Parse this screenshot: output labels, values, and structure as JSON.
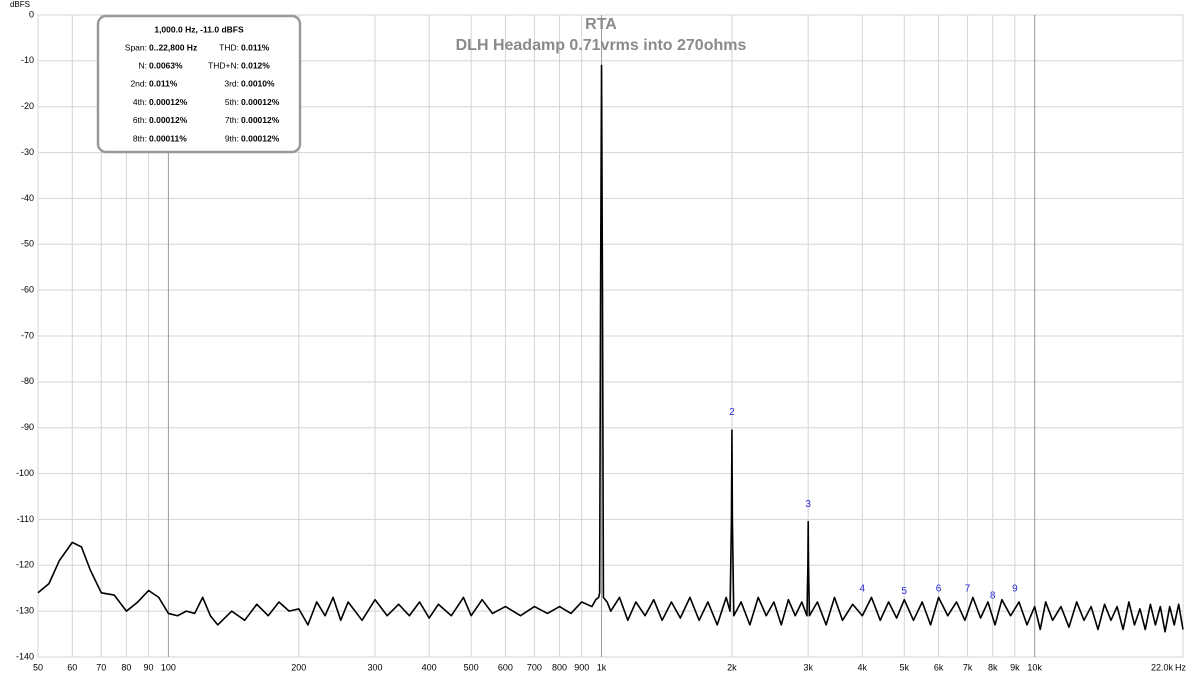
{
  "chart_data": {
    "type": "line",
    "title": "RTA",
    "subtitle": "DLH Headamp 0.71vrms into 270ohms",
    "y_unit": "dBFS",
    "x_unit": "Hz",
    "log_x": true,
    "grid": true,
    "xlim": [
      50,
      22000
    ],
    "ylim": [
      -140,
      0
    ],
    "yticks": [
      0,
      -10,
      -20,
      -30,
      -40,
      -50,
      -60,
      -70,
      -80,
      -90,
      -100,
      -110,
      -120,
      -130,
      -140
    ],
    "xticks": [
      50,
      60,
      70,
      80,
      90,
      100,
      200,
      300,
      400,
      500,
      600,
      700,
      800,
      900,
      {
        "value": 1000,
        "label": "1k"
      },
      {
        "value": 2000,
        "label": "2k"
      },
      {
        "value": 3000,
        "label": "3k"
      },
      {
        "value": 4000,
        "label": "4k"
      },
      {
        "value": 5000,
        "label": "5k"
      },
      {
        "value": 6000,
        "label": "6k"
      },
      {
        "value": 7000,
        "label": "7k"
      },
      {
        "value": 8000,
        "label": "8k"
      },
      {
        "value": 9000,
        "label": "9k"
      },
      {
        "value": 10000,
        "label": "10k"
      },
      {
        "value": 22000,
        "label": "22.0k"
      }
    ],
    "x": [
      50,
      53,
      56,
      60,
      63,
      66,
      70,
      75,
      80,
      85,
      90,
      95,
      100,
      105,
      110,
      115,
      120,
      125,
      130,
      140,
      150,
      160,
      170,
      180,
      190,
      200,
      210,
      220,
      230,
      240,
      250,
      260,
      280,
      300,
      320,
      340,
      360,
      380,
      400,
      420,
      450,
      480,
      500,
      530,
      560,
      600,
      650,
      700,
      750,
      800,
      850,
      900,
      950,
      970,
      985,
      990,
      995,
      1000,
      1005,
      1010,
      1030,
      1050,
      1100,
      1150,
      1200,
      1260,
      1320,
      1380,
      1450,
      1520,
      1600,
      1680,
      1760,
      1850,
      1940,
      1980,
      1995,
      2000,
      2005,
      2020,
      2100,
      2200,
      2300,
      2400,
      2500,
      2600,
      2700,
      2800,
      2900,
      2980,
      2995,
      3000,
      3005,
      3020,
      3150,
      3300,
      3450,
      3600,
      3800,
      4000,
      4200,
      4400,
      4600,
      4800,
      5000,
      5250,
      5500,
      5750,
      6000,
      6300,
      6600,
      6900,
      7200,
      7500,
      7800,
      8100,
      8400,
      8800,
      9200,
      9600,
      10000,
      10300,
      10600,
      11000,
      11500,
      12000,
      12500,
      13000,
      13500,
      14000,
      14500,
      15000,
      15500,
      16000,
      16500,
      17000,
      17500,
      18000,
      18500,
      19000,
      19500,
      20000,
      20500,
      21000,
      21500,
      22000
    ],
    "series": [
      {
        "name": "RTA",
        "color": "#000000",
        "values": [
          -126,
          -124,
          -119,
          -115,
          -116,
          -121,
          -126,
          -126.5,
          -130,
          -128,
          -125.5,
          -127,
          -130.5,
          -131,
          -130,
          -130.5,
          -127,
          -131,
          -133,
          -130,
          -132,
          -128.5,
          -131,
          -128,
          -130,
          -129.5,
          -133,
          -128,
          -131,
          -127,
          -132,
          -128,
          -132,
          -127.5,
          -131,
          -128.5,
          -131,
          -128,
          -131.5,
          -128.5,
          -131,
          -127,
          -131,
          -127.5,
          -130.5,
          -129,
          -131,
          -129,
          -130.5,
          -129,
          -130.5,
          -128,
          -129,
          -127.5,
          -127,
          -126,
          -60,
          -11,
          -60,
          -127,
          -128,
          -130,
          -127,
          -132,
          -128,
          -131,
          -127.5,
          -132,
          -128,
          -131.5,
          -127,
          -132,
          -128,
          -133,
          -127,
          -130,
          -110,
          -90.5,
          -110,
          -131,
          -128,
          -133,
          -127,
          -131,
          -128,
          -133,
          -127.5,
          -131,
          -128,
          -131,
          -120,
          -110.5,
          -120,
          -131,
          -128,
          -133,
          -127,
          -132,
          -128.5,
          -131,
          -127,
          -132,
          -128,
          -131.5,
          -127.5,
          -132,
          -128,
          -133,
          -127,
          -131,
          -128,
          -132,
          -127,
          -131.5,
          -128,
          -133,
          -127.5,
          -131,
          -128,
          -133,
          -129,
          -134,
          -128,
          -132,
          -129,
          -133.5,
          -128,
          -132,
          -129,
          -134,
          -128.5,
          -132,
          -129,
          -134,
          -128,
          -133,
          -129.5,
          -134,
          -128.5,
          -133,
          -129,
          -134.5,
          -129,
          -133,
          -128.5,
          -134
        ]
      }
    ],
    "harmonic_markers": [
      {
        "label": "2",
        "x": 2000,
        "y": -88
      },
      {
        "label": "3",
        "x": 3000,
        "y": -108
      },
      {
        "label": "4",
        "x": 4000,
        "y": -126.5
      },
      {
        "label": "5",
        "x": 5000,
        "y": -127
      },
      {
        "label": "6",
        "x": 6000,
        "y": -126.5
      },
      {
        "label": "7",
        "x": 7000,
        "y": -126.5
      },
      {
        "label": "8",
        "x": 8000,
        "y": -128
      },
      {
        "label": "9",
        "x": 9000,
        "y": -126.5
      }
    ],
    "info_box": {
      "header": "1,000.0 Hz, -11.0 dBFS",
      "rows": [
        [
          "Span:",
          "0..22,800 Hz",
          "THD:",
          "0.011%"
        ],
        [
          "N:",
          "0.0063%",
          "THD+N:",
          "0.012%"
        ],
        [
          "2nd:",
          "0.011%",
          "3rd:",
          "0.0010%"
        ],
        [
          "4th:",
          "0.00012%",
          "5th:",
          "0.00012%"
        ],
        [
          "6th:",
          "0.00012%",
          "7th:",
          "0.00012%"
        ],
        [
          "8th:",
          "0.00011%",
          "9th:",
          "0.00012%"
        ]
      ]
    }
  }
}
